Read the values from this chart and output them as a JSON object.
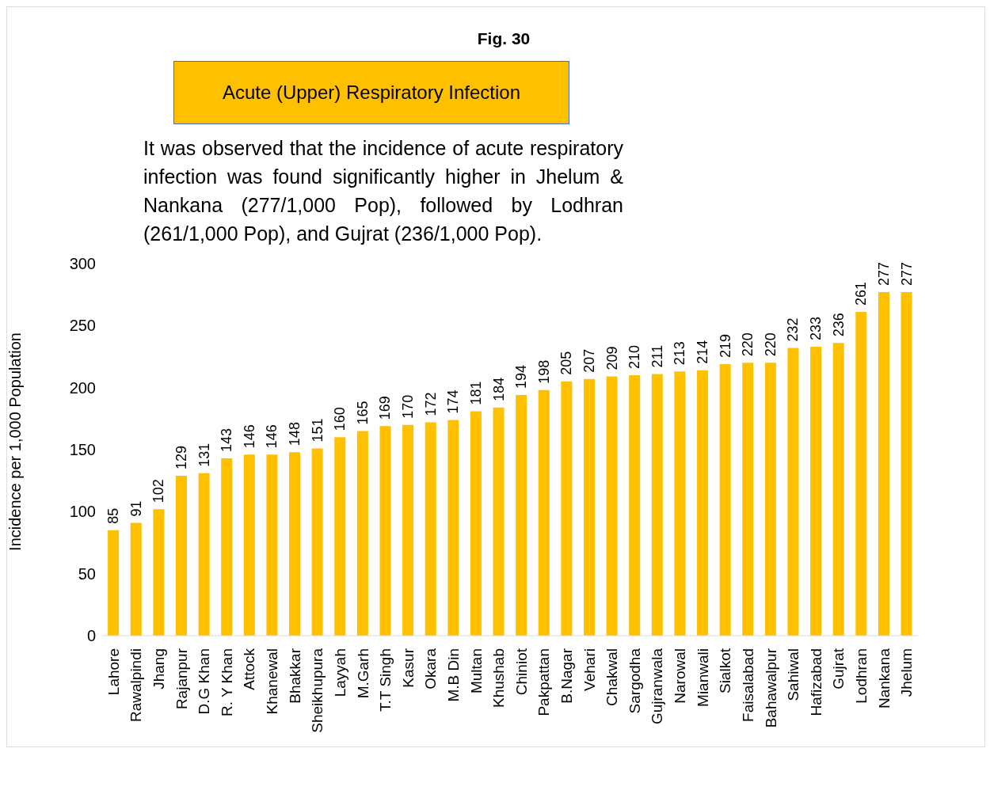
{
  "chart_data": {
    "type": "bar",
    "title": "Fig. 30",
    "subtitle": "Acute (Upper) Respiratory Infection",
    "annotations": [
      "It was observed that the incidence of acute respiratory infection was found significantly higher in Jhelum & Nankana (277/1,000 Pop), followed by Lodhran (261/1,000 Pop), and Gujrat (236/1,000 Pop)."
    ],
    "ylabel": "Incidence per 1,000 Population",
    "categories": [
      "Lahore",
      "Rawalpindi",
      "Jhang",
      "Rajanpur",
      "D.G Khan",
      "R. Y Khan",
      "Attock",
      "Khanewal",
      "Bhakkar",
      "Sheikhupura",
      "Layyah",
      "M.Garh",
      "T.T Singh",
      "Kasur",
      "Okara",
      "M.B Din",
      "Multan",
      "Khushab",
      "Chiniot",
      "Pakpattan",
      "B.Nagar",
      "Vehari",
      "Chakwal",
      "Sargodha",
      "Gujranwala",
      "Narowal",
      "Mianwali",
      "Sialkot",
      "Faisalabad",
      "Bahawalpur",
      "Sahiwal",
      "Hafizabad",
      "Gujrat",
      "Lodhran",
      "Nankana",
      "Jhelum"
    ],
    "values": [
      85,
      91,
      102,
      129,
      131,
      143,
      146,
      146,
      148,
      151,
      160,
      165,
      169,
      170,
      172,
      174,
      181,
      184,
      194,
      198,
      205,
      207,
      209,
      210,
      211,
      213,
      214,
      219,
      220,
      220,
      232,
      233,
      236,
      261,
      277,
      277
    ],
    "color": "#ffc000",
    "ylim": [
      0,
      300
    ],
    "yticks": [
      0,
      50,
      100,
      150,
      200,
      250,
      300
    ],
    "grid": false,
    "data_labels": true
  }
}
